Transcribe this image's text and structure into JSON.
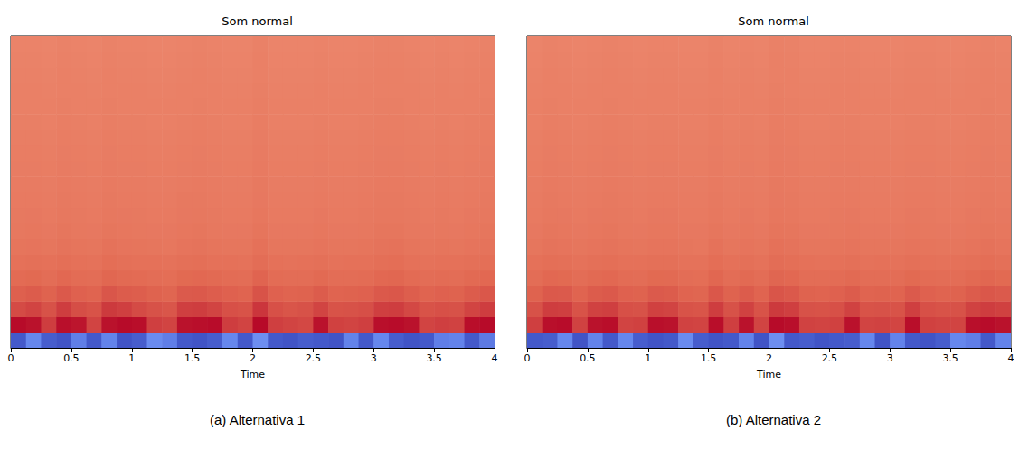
{
  "chart_data": [
    {
      "type": "heatmap",
      "title": "Som normal",
      "caption": "(a) Alternativa 1",
      "xlabel": "Time",
      "xlim": [
        0,
        4
      ],
      "xticks": [
        0,
        0.5,
        1,
        1.5,
        2,
        2.5,
        3,
        3.5,
        4
      ],
      "tick_labels": "x",
      "grid": false,
      "color_range": [
        -400,
        100
      ],
      "cells": [
        [
          -385,
          -330,
          -380,
          -390,
          -340,
          -385,
          -335,
          -390,
          -380,
          -325,
          -340,
          -385,
          -390,
          -380,
          -330,
          -385,
          -320,
          -385,
          -390,
          -380,
          -385,
          -390,
          -335,
          -385,
          -330,
          -380,
          -390,
          -385,
          -340,
          -335,
          -385,
          -345
        ],
        [
          95,
          90,
          60,
          92,
          88,
          55,
          90,
          95,
          93,
          58,
          55,
          90,
          92,
          94,
          60,
          55,
          96,
          58,
          55,
          52,
          90,
          57,
          55,
          58,
          92,
          94,
          90,
          55,
          58,
          56,
          93,
          95
        ],
        [
          50,
          55,
          45,
          60,
          48,
          44,
          62,
          58,
          50,
          45,
          42,
          58,
          60,
          55,
          46,
          44,
          65,
          46,
          43,
          45,
          55,
          44,
          45,
          47,
          58,
          60,
          52,
          44,
          46,
          45,
          55,
          60
        ],
        [
          35,
          38,
          33,
          40,
          34,
          32,
          42,
          38,
          36,
          33,
          31,
          39,
          40,
          37,
          34,
          32,
          44,
          34,
          32,
          33,
          38,
          32,
          33,
          34,
          40,
          41,
          36,
          32,
          34,
          33,
          38,
          41
        ],
        [
          26,
          28,
          24,
          29,
          25,
          24,
          30,
          27,
          26,
          24,
          23,
          28,
          29,
          27,
          25,
          24,
          32,
          25,
          24,
          24,
          27,
          24,
          24,
          25,
          29,
          30,
          26,
          24,
          25,
          24,
          27,
          29
        ],
        [
          20,
          21,
          19,
          22,
          20,
          18,
          23,
          21,
          20,
          19,
          18,
          21,
          22,
          20,
          19,
          18,
          24,
          19,
          18,
          19,
          21,
          18,
          19,
          19,
          22,
          23,
          20,
          18,
          19,
          19,
          21,
          22
        ],
        [
          15,
          16,
          14,
          17,
          15,
          14,
          18,
          16,
          15,
          14,
          13,
          16,
          17,
          15,
          14,
          14,
          19,
          14,
          14,
          14,
          16,
          14,
          14,
          15,
          17,
          18,
          15,
          14,
          15,
          14,
          16,
          17
        ],
        [
          12,
          13,
          11,
          14,
          12,
          11,
          14,
          13,
          12,
          11,
          11,
          13,
          14,
          12,
          11,
          11,
          15,
          11,
          11,
          11,
          13,
          11,
          11,
          12,
          14,
          14,
          12,
          11,
          12,
          11,
          13,
          14
        ],
        [
          10,
          11,
          9,
          12,
          10,
          9,
          12,
          11,
          10,
          9,
          9,
          11,
          12,
          10,
          9,
          9,
          13,
          9,
          9,
          9,
          11,
          9,
          9,
          10,
          12,
          12,
          10,
          9,
          10,
          9,
          11,
          12
        ],
        [
          9,
          9,
          8,
          10,
          9,
          8,
          10,
          9,
          9,
          8,
          8,
          10,
          10,
          9,
          8,
          8,
          11,
          8,
          8,
          8,
          9,
          8,
          8,
          9,
          10,
          10,
          9,
          8,
          9,
          8,
          9,
          10
        ],
        [
          8,
          8,
          7,
          9,
          8,
          7,
          9,
          8,
          8,
          7,
          7,
          8,
          9,
          8,
          7,
          7,
          10,
          7,
          7,
          7,
          8,
          7,
          7,
          8,
          9,
          9,
          8,
          7,
          8,
          7,
          8,
          9
        ],
        [
          7,
          7,
          6,
          8,
          7,
          6,
          8,
          7,
          7,
          6,
          6,
          7,
          8,
          7,
          6,
          6,
          9,
          6,
          6,
          6,
          7,
          6,
          6,
          7,
          8,
          8,
          7,
          6,
          7,
          6,
          7,
          8
        ],
        [
          6,
          6,
          5,
          7,
          6,
          5,
          7,
          6,
          6,
          5,
          5,
          6,
          7,
          6,
          5,
          5,
          8,
          5,
          5,
          5,
          6,
          5,
          5,
          6,
          7,
          7,
          6,
          5,
          6,
          5,
          6,
          7
        ],
        [
          5,
          5,
          4,
          6,
          5,
          4,
          6,
          5,
          5,
          4,
          4,
          5,
          6,
          5,
          4,
          4,
          7,
          4,
          4,
          4,
          5,
          4,
          4,
          5,
          6,
          6,
          5,
          4,
          5,
          4,
          5,
          6
        ],
        [
          4,
          4,
          3,
          5,
          4,
          3,
          5,
          4,
          4,
          3,
          3,
          4,
          5,
          4,
          3,
          3,
          6,
          3,
          3,
          3,
          4,
          3,
          3,
          4,
          5,
          5,
          4,
          3,
          4,
          3,
          4,
          5
        ],
        [
          3,
          3,
          2,
          4,
          3,
          2,
          4,
          3,
          3,
          2,
          2,
          3,
          4,
          3,
          2,
          2,
          5,
          2,
          2,
          2,
          3,
          2,
          2,
          3,
          4,
          4,
          3,
          2,
          3,
          2,
          3,
          4
        ],
        [
          2,
          2,
          1,
          3,
          2,
          1,
          3,
          2,
          2,
          1,
          1,
          2,
          3,
          2,
          1,
          1,
          4,
          1,
          1,
          1,
          2,
          1,
          1,
          2,
          3,
          3,
          2,
          1,
          2,
          1,
          2,
          3
        ],
        [
          1,
          1,
          0,
          2,
          1,
          0,
          2,
          1,
          1,
          0,
          0,
          1,
          2,
          1,
          0,
          0,
          3,
          0,
          0,
          0,
          1,
          0,
          0,
          1,
          2,
          2,
          1,
          0,
          1,
          0,
          1,
          2
        ],
        [
          0,
          0,
          -1,
          1,
          0,
          -1,
          1,
          0,
          0,
          -1,
          -1,
          0,
          1,
          0,
          -1,
          -1,
          2,
          -1,
          -1,
          -1,
          0,
          -1,
          -1,
          0,
          1,
          1,
          0,
          -1,
          0,
          -1,
          0,
          1
        ],
        [
          -1,
          -1,
          -2,
          0,
          -1,
          -2,
          0,
          -1,
          -1,
          -2,
          -2,
          -1,
          0,
          -1,
          -2,
          -2,
          1,
          -2,
          -2,
          -2,
          -1,
          -2,
          -2,
          -1,
          0,
          0,
          -1,
          -2,
          -1,
          -2,
          -1,
          0
        ]
      ]
    },
    {
      "type": "heatmap",
      "title": "Som normal",
      "caption": "(b) Alternativa 2",
      "xlabel": "Time",
      "xlim": [
        0,
        4
      ],
      "xticks": [
        0,
        0.5,
        1,
        1.5,
        2,
        2.5,
        3,
        3.5,
        4
      ],
      "tick_labels": "x",
      "grid": false,
      "color_range": [
        -400,
        100
      ],
      "cells": [
        [
          -385,
          -380,
          -330,
          -390,
          -335,
          -385,
          -330,
          -380,
          -390,
          -385,
          -325,
          -380,
          -390,
          -385,
          -335,
          -390,
          -320,
          -385,
          -380,
          -390,
          -385,
          -380,
          -330,
          -390,
          -335,
          -385,
          -390,
          -380,
          -330,
          -340,
          -385,
          -335
        ],
        [
          58,
          92,
          94,
          56,
          90,
          93,
          55,
          57,
          92,
          90,
          56,
          55,
          93,
          58,
          90,
          55,
          95,
          92,
          56,
          55,
          57,
          91,
          55,
          56,
          54,
          93,
          57,
          55,
          55,
          92,
          94,
          90
        ],
        [
          45,
          60,
          58,
          44,
          56,
          58,
          46,
          45,
          57,
          55,
          44,
          43,
          60,
          45,
          56,
          44,
          62,
          58,
          45,
          44,
          46,
          56,
          44,
          45,
          44,
          58,
          46,
          44,
          45,
          56,
          60,
          57
        ],
        [
          33,
          40,
          39,
          32,
          38,
          40,
          34,
          33,
          39,
          38,
          32,
          31,
          41,
          33,
          38,
          32,
          43,
          40,
          33,
          32,
          34,
          38,
          32,
          33,
          32,
          39,
          34,
          32,
          33,
          38,
          41,
          39
        ],
        [
          24,
          29,
          28,
          24,
          27,
          29,
          25,
          24,
          28,
          27,
          24,
          23,
          30,
          24,
          27,
          24,
          31,
          29,
          24,
          24,
          25,
          27,
          24,
          24,
          24,
          28,
          25,
          24,
          24,
          27,
          30,
          28
        ],
        [
          19,
          22,
          21,
          18,
          21,
          22,
          19,
          19,
          21,
          21,
          18,
          18,
          23,
          19,
          21,
          18,
          24,
          22,
          19,
          18,
          19,
          21,
          18,
          19,
          18,
          21,
          19,
          18,
          19,
          21,
          23,
          21
        ],
        [
          14,
          17,
          16,
          14,
          16,
          17,
          15,
          14,
          16,
          16,
          14,
          13,
          18,
          14,
          16,
          14,
          19,
          17,
          14,
          14,
          15,
          16,
          14,
          14,
          14,
          16,
          15,
          14,
          14,
          16,
          18,
          16
        ],
        [
          11,
          14,
          13,
          11,
          13,
          14,
          12,
          11,
          13,
          13,
          11,
          11,
          14,
          11,
          13,
          11,
          15,
          14,
          11,
          11,
          12,
          13,
          11,
          11,
          11,
          13,
          12,
          11,
          11,
          13,
          14,
          13
        ],
        [
          9,
          12,
          11,
          9,
          11,
          12,
          10,
          9,
          11,
          11,
          9,
          9,
          12,
          9,
          11,
          9,
          13,
          12,
          9,
          9,
          10,
          11,
          9,
          9,
          9,
          11,
          10,
          9,
          9,
          11,
          12,
          11
        ],
        [
          8,
          10,
          9,
          8,
          9,
          10,
          9,
          8,
          9,
          9,
          8,
          8,
          10,
          8,
          9,
          8,
          11,
          10,
          8,
          8,
          9,
          9,
          8,
          8,
          8,
          9,
          9,
          8,
          8,
          9,
          10,
          9
        ],
        [
          7,
          9,
          8,
          7,
          8,
          9,
          8,
          7,
          8,
          8,
          7,
          7,
          9,
          7,
          8,
          7,
          10,
          9,
          7,
          7,
          8,
          8,
          7,
          7,
          7,
          8,
          8,
          7,
          7,
          8,
          9,
          8
        ],
        [
          6,
          8,
          7,
          6,
          7,
          8,
          7,
          6,
          7,
          7,
          6,
          6,
          8,
          6,
          7,
          6,
          9,
          8,
          6,
          6,
          7,
          7,
          6,
          6,
          6,
          7,
          7,
          6,
          6,
          7,
          8,
          7
        ],
        [
          5,
          7,
          6,
          5,
          6,
          7,
          6,
          5,
          6,
          6,
          5,
          5,
          7,
          5,
          6,
          5,
          8,
          7,
          5,
          5,
          6,
          6,
          5,
          5,
          5,
          6,
          6,
          5,
          5,
          6,
          7,
          6
        ],
        [
          4,
          6,
          5,
          4,
          5,
          6,
          5,
          4,
          5,
          5,
          4,
          4,
          6,
          4,
          5,
          4,
          7,
          6,
          4,
          4,
          5,
          5,
          4,
          4,
          4,
          5,
          5,
          4,
          4,
          5,
          6,
          5
        ],
        [
          3,
          5,
          4,
          3,
          4,
          5,
          4,
          3,
          4,
          4,
          3,
          3,
          5,
          3,
          4,
          3,
          6,
          5,
          3,
          3,
          4,
          4,
          3,
          3,
          3,
          4,
          4,
          3,
          3,
          4,
          5,
          4
        ],
        [
          2,
          4,
          3,
          2,
          3,
          4,
          3,
          2,
          3,
          3,
          2,
          2,
          4,
          2,
          3,
          2,
          5,
          4,
          2,
          2,
          3,
          3,
          2,
          2,
          2,
          3,
          3,
          2,
          2,
          3,
          4,
          3
        ],
        [
          1,
          3,
          2,
          1,
          2,
          3,
          2,
          1,
          2,
          2,
          1,
          1,
          3,
          1,
          2,
          1,
          4,
          3,
          1,
          1,
          2,
          2,
          1,
          1,
          1,
          2,
          2,
          1,
          1,
          2,
          3,
          2
        ],
        [
          0,
          2,
          1,
          0,
          1,
          2,
          1,
          0,
          1,
          1,
          0,
          0,
          2,
          0,
          1,
          0,
          3,
          2,
          0,
          0,
          1,
          1,
          0,
          0,
          0,
          1,
          1,
          0,
          0,
          1,
          2,
          1
        ],
        [
          -1,
          1,
          0,
          -1,
          0,
          1,
          0,
          -1,
          0,
          0,
          -1,
          -1,
          1,
          -1,
          0,
          -1,
          2,
          1,
          -1,
          -1,
          0,
          0,
          -1,
          -1,
          -1,
          0,
          0,
          -1,
          -1,
          0,
          1,
          0
        ],
        [
          -2,
          0,
          -1,
          -2,
          -1,
          0,
          -1,
          -2,
          -1,
          -1,
          -2,
          -2,
          0,
          -2,
          -1,
          -2,
          1,
          0,
          -2,
          -2,
          -1,
          -1,
          -2,
          -2,
          -2,
          -1,
          -1,
          -2,
          -2,
          -1,
          0,
          -1
        ]
      ]
    }
  ]
}
